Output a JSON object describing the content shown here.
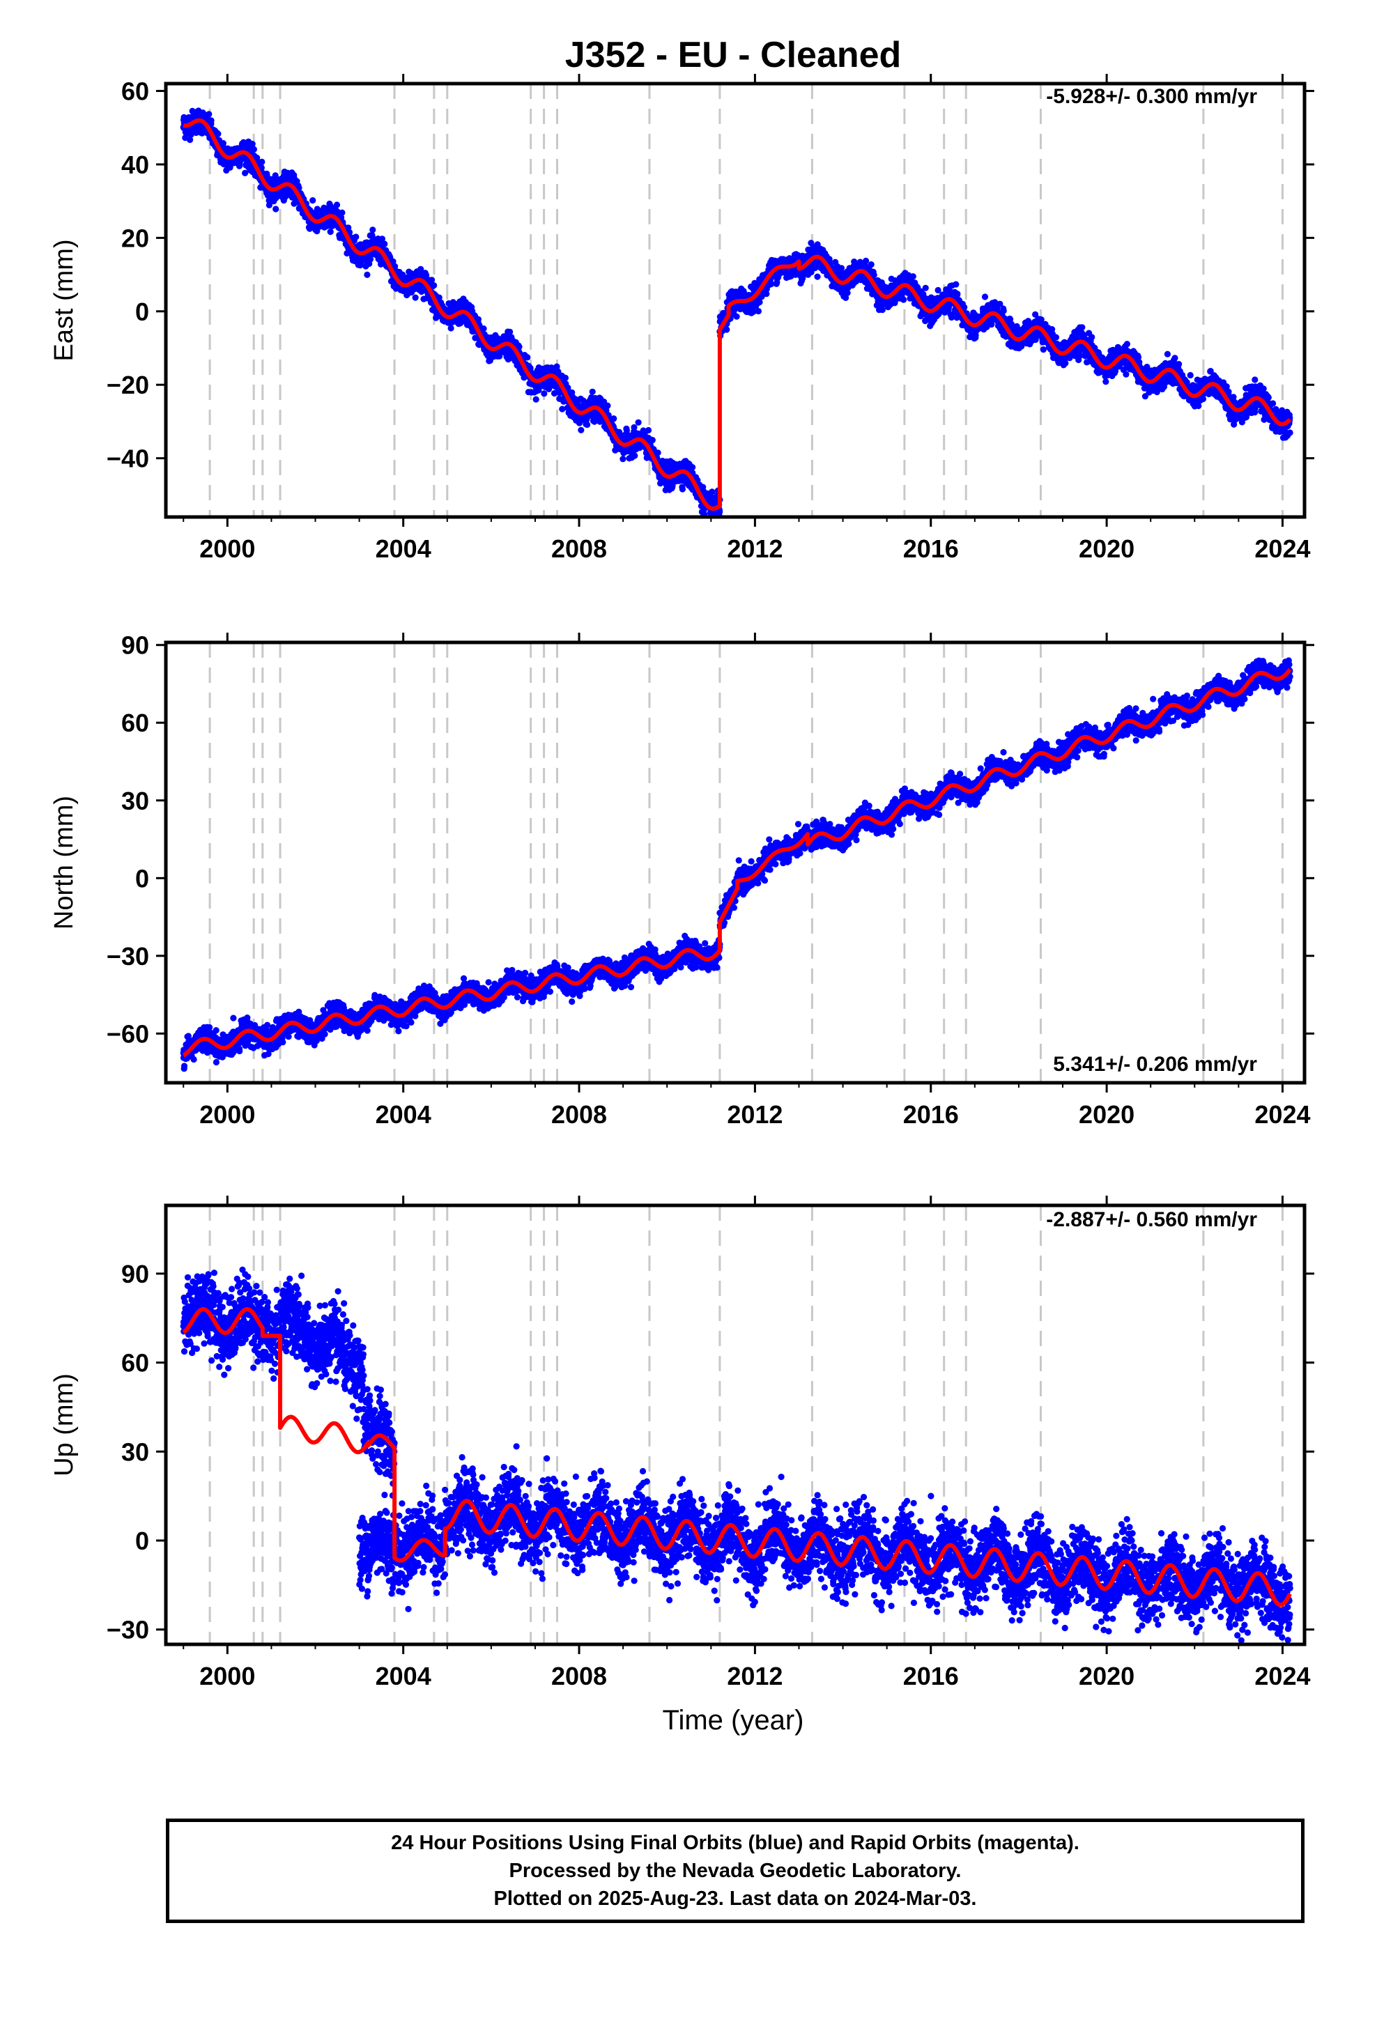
{
  "chart_data": [
    {
      "type": "scatter",
      "panel": "east",
      "title": "J352  - EU - Cleaned",
      "ylabel": "East (mm)",
      "rate": "-5.928+/- 0.300 mm/yr",
      "xlim": [
        1998.6,
        2024.5
      ],
      "ylim": [
        -56,
        62
      ],
      "yticks": [
        -40,
        -20,
        0,
        20,
        40,
        60
      ],
      "xticks": [
        2000,
        2004,
        2008,
        2012,
        2016,
        2020,
        2024
      ],
      "events": [
        1999.6,
        2000.6,
        2000.8,
        2001.2,
        2003.8,
        2004.7,
        2005.0,
        2006.9,
        2007.2,
        2007.5,
        2009.6,
        2011.2,
        2013.3,
        2015.4,
        2016.3,
        2016.8,
        2018.5,
        2022.2,
        2024.0
      ],
      "series": [
        {
          "color": "#0000ff",
          "style": "points",
          "noise": 1.6,
          "segments": [
            {
              "t0": 1999.0,
              "t1": 2011.2,
              "v0": 53,
              "v1": -53,
              "amp": 2.5
            },
            {
              "t0": 2011.2,
              "t1": 2011.4,
              "v0": -5,
              "v1": -1,
              "amp": 0
            },
            {
              "t0": 2011.4,
              "t1": 2013.0,
              "v0": 0,
              "v1": 15,
              "amp": 1.5
            },
            {
              "t0": 2013.0,
              "t1": 2024.17,
              "v0": 14,
              "v1": -29,
              "amp": 2.5
            }
          ]
        },
        {
          "color": "#ff0000",
          "style": "line",
          "noise": 0,
          "segments": [
            {
              "t0": 1999.0,
              "t1": 2011.2,
              "v0": 53,
              "v1": -53,
              "amp": 2.5
            },
            {
              "t0": 2011.2,
              "t1": 2011.4,
              "v0": -5,
              "v1": -1,
              "amp": 0
            },
            {
              "t0": 2011.4,
              "t1": 2013.0,
              "v0": 0,
              "v1": 15,
              "amp": 1.5
            },
            {
              "t0": 2013.0,
              "t1": 2024.17,
              "v0": 14,
              "v1": -29,
              "amp": 2.5
            }
          ]
        }
      ]
    },
    {
      "type": "scatter",
      "panel": "north",
      "ylabel": "North (mm)",
      "rate": "5.341+/- 0.206 mm/yr",
      "xlim": [
        1998.6,
        2024.5
      ],
      "ylim": [
        -79,
        91
      ],
      "yticks": [
        -60,
        -30,
        0,
        30,
        60,
        90
      ],
      "xticks": [
        2000,
        2004,
        2008,
        2012,
        2016,
        2020,
        2024
      ],
      "events": [
        1999.6,
        2000.6,
        2000.8,
        2001.2,
        2003.8,
        2004.7,
        2005.0,
        2006.9,
        2007.2,
        2007.5,
        2009.6,
        2011.2,
        2013.3,
        2015.4,
        2016.3,
        2016.8,
        2018.5,
        2022.2,
        2024.0
      ],
      "series": [
        {
          "color": "#0000ff",
          "style": "points",
          "noise": 2.2,
          "segments": [
            {
              "t0": 1999.0,
              "t1": 2011.2,
              "v0": -66,
              "v1": -28,
              "amp": 2.5
            },
            {
              "t0": 2011.2,
              "t1": 2011.6,
              "v0": -17,
              "v1": -4,
              "amp": 0
            },
            {
              "t0": 2011.6,
              "t1": 2013.2,
              "v0": -2,
              "v1": 17,
              "amp": 1.5
            },
            {
              "t0": 2013.2,
              "t1": 2024.17,
              "v0": 13,
              "v1": 81,
              "amp": 2.5
            }
          ]
        },
        {
          "color": "#ff0000",
          "style": "line",
          "noise": 0,
          "segments": [
            {
              "t0": 1999.0,
              "t1": 2011.2,
              "v0": -66,
              "v1": -28,
              "amp": 2.5
            },
            {
              "t0": 2011.2,
              "t1": 2011.6,
              "v0": -17,
              "v1": -4,
              "amp": 0
            },
            {
              "t0": 2011.6,
              "t1": 2013.2,
              "v0": -2,
              "v1": 17,
              "amp": 1.5
            },
            {
              "t0": 2013.2,
              "t1": 2024.17,
              "v0": 13,
              "v1": 81,
              "amp": 2.5
            }
          ]
        }
      ]
    },
    {
      "type": "scatter",
      "panel": "up",
      "ylabel": "Up (mm)",
      "xlabel": "Time (year)",
      "rate": "-2.887+/- 0.560 mm/yr",
      "xlim": [
        1998.6,
        2024.5
      ],
      "ylim": [
        -35,
        113
      ],
      "yticks": [
        -30,
        0,
        30,
        60,
        90
      ],
      "xticks": [
        2000,
        2004,
        2008,
        2012,
        2016,
        2020,
        2024
      ],
      "events": [
        1999.6,
        2000.6,
        2000.8,
        2001.2,
        2003.8,
        2004.7,
        2005.0,
        2006.9,
        2007.2,
        2007.5,
        2009.6,
        2011.2,
        2013.3,
        2015.4,
        2016.3,
        2016.8,
        2018.5,
        2022.2,
        2024.0
      ],
      "series": [
        {
          "color": "#0000ff",
          "style": "points",
          "noise": 6,
          "segments": [
            {
              "t0": 1999.0,
              "t1": 2001.2,
              "v0": 77,
              "v1": 72,
              "amp": 4
            },
            {
              "t0": 2001.2,
              "t1": 2003.1,
              "v0": 75,
              "v1": 58,
              "amp": 4
            },
            {
              "t0": 2003.1,
              "t1": 2003.8,
              "v0": 40,
              "v1": 30,
              "amp": 3
            },
            {
              "t0": 2003.0,
              "t1": 2004.95,
              "v0": -3,
              "v1": 0,
              "amp": 3
            },
            {
              "t0": 2004.95,
              "t1": 2024.17,
              "v0": 9,
              "v1": -17,
              "amp": 5
            }
          ]
        },
        {
          "color": "#ff0000",
          "style": "line",
          "noise": 0,
          "segments": [
            {
              "t0": 1999.0,
              "t1": 2000.8,
              "v0": 74,
              "v1": 74,
              "amp": 4
            },
            {
              "t0": 2000.8,
              "t1": 2001.2,
              "v0": 69,
              "v1": 69,
              "amp": 0
            },
            {
              "t0": 2001.2,
              "t1": 2002.0,
              "v0": 38,
              "v1": 37,
              "amp": 4
            },
            {
              "t0": 2002.0,
              "t1": 2003.2,
              "v0": 37,
              "v1": 33,
              "amp": 4
            },
            {
              "t0": 2003.2,
              "t1": 2003.8,
              "v0": 32,
              "v1": 33,
              "amp": 3
            },
            {
              "t0": 2003.8,
              "t1": 2004.95,
              "v0": -4,
              "v1": -2,
              "amp": 3
            },
            {
              "t0": 2004.95,
              "t1": 2024.17,
              "v0": 9,
              "v1": -17,
              "amp": 5
            }
          ]
        }
      ]
    }
  ],
  "footer": {
    "line1": "24 Hour Positions Using Final Orbits (blue) and Rapid Orbits (magenta).",
    "line2": "Processed by the Nevada Geodetic Laboratory.",
    "line3": "Plotted on 2025-Aug-23. Last data on 2024-Mar-03."
  }
}
